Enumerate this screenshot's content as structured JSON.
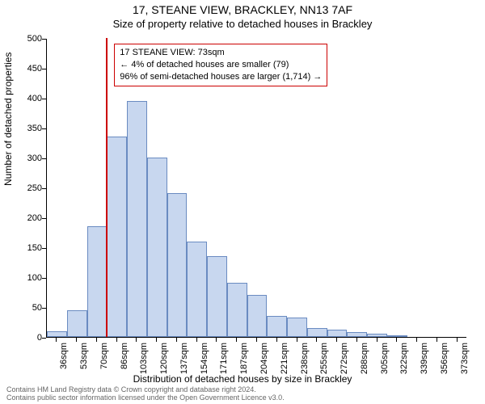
{
  "header": {
    "address": "17, STEANE VIEW, BRACKLEY, NN13 7AF",
    "subtitle": "Size of property relative to detached houses in Brackley"
  },
  "chart": {
    "type": "histogram",
    "y_label": "Number of detached properties",
    "x_label": "Distribution of detached houses by size in Brackley",
    "y_max": 500,
    "y_tick_step": 50,
    "x_categories": [
      "36sqm",
      "53sqm",
      "70sqm",
      "86sqm",
      "103sqm",
      "120sqm",
      "137sqm",
      "154sqm",
      "171sqm",
      "187sqm",
      "204sqm",
      "221sqm",
      "238sqm",
      "255sqm",
      "272sqm",
      "288sqm",
      "305sqm",
      "322sqm",
      "339sqm",
      "356sqm",
      "373sqm"
    ],
    "values": [
      10,
      45,
      185,
      335,
      395,
      300,
      240,
      160,
      135,
      90,
      70,
      35,
      32,
      15,
      12,
      8,
      5,
      3,
      0,
      0,
      0
    ],
    "bar_fill": "#c8d7ef",
    "bar_stroke": "#6a8bc1",
    "background_color": "#ffffff",
    "axis_color": "#000000",
    "marker": {
      "after_index": 2,
      "color": "#cc0000"
    }
  },
  "annotation": {
    "line1": "17 STEANE VIEW: 73sqm",
    "line2": "← 4% of detached houses are smaller (79)",
    "line3": "96% of semi-detached houses are larger (1,714) →",
    "border_color": "#cc0000"
  },
  "footer": {
    "line1": "Contains HM Land Registry data © Crown copyright and database right 2024.",
    "line2": "Contains public sector information licensed under the Open Government Licence v3.0."
  }
}
